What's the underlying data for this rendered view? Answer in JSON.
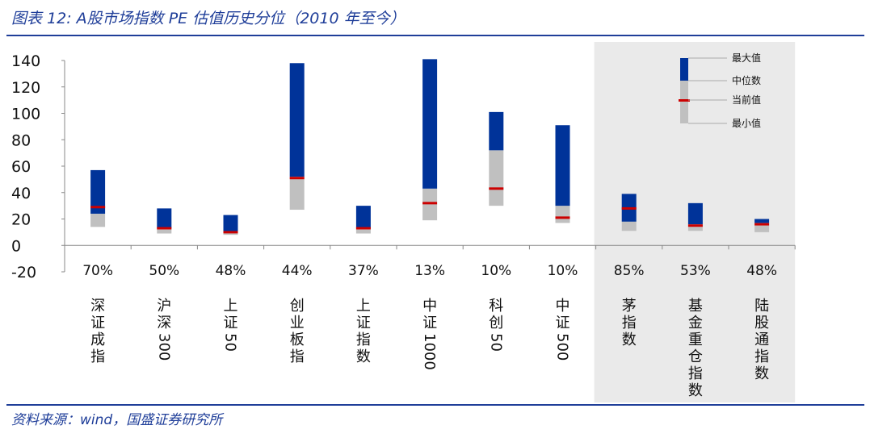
{
  "header": {
    "title": "图表 12: A股市场指数 PE 估值历史分位（2010 年至今）"
  },
  "footer": {
    "source": "资料来源：wind，国盛证券研究所"
  },
  "chart_data": {
    "type": "bar",
    "subtype": "floating-range",
    "title": "图表 12: A股市场指数 PE 估值历史分位（2010 年至今）",
    "ylim": [
      -20,
      140
    ],
    "yticks": [
      -20,
      0,
      20,
      40,
      60,
      80,
      100,
      120,
      140
    ],
    "grid": false,
    "legend_position": "top-right",
    "legend": [
      {
        "key": "max",
        "label": "最大值"
      },
      {
        "key": "median",
        "label": "中位数"
      },
      {
        "key": "current",
        "label": "当前值"
      },
      {
        "key": "min",
        "label": "最小值"
      }
    ],
    "colors": {
      "upper": "#003399",
      "lower": "#c0c0c0",
      "current": "#cc0000",
      "highlight_bg": "#eaeaea",
      "accent": "#1f3e99"
    },
    "categories": [
      "深证成指",
      "沪深300",
      "上证50",
      "创业板指",
      "上证指数",
      "中证1000",
      "科创50",
      "中证500",
      "茅指数",
      "基金重仓指数",
      "陆股通指数"
    ],
    "highlighted_categories": [
      "茅指数",
      "基金重仓指数",
      "陆股通指数"
    ],
    "percentile_labels": [
      "70%",
      "50%",
      "48%",
      "44%",
      "37%",
      "13%",
      "10%",
      "10%",
      "85%",
      "53%",
      "48%"
    ],
    "series": [
      {
        "name": "最大值",
        "values": [
          57,
          28,
          23,
          138,
          30,
          141,
          101,
          91,
          39,
          32,
          20
        ]
      },
      {
        "name": "中位数",
        "values": [
          24,
          13,
          10,
          52,
          13,
          43,
          72,
          30,
          18,
          16,
          17
        ]
      },
      {
        "name": "当前值",
        "values": [
          29,
          13,
          10,
          51,
          13,
          32,
          43,
          21,
          28,
          15,
          16
        ]
      },
      {
        "name": "最小值",
        "values": [
          14,
          9,
          8,
          27,
          9,
          19,
          30,
          17,
          11,
          11,
          10
        ]
      }
    ]
  }
}
